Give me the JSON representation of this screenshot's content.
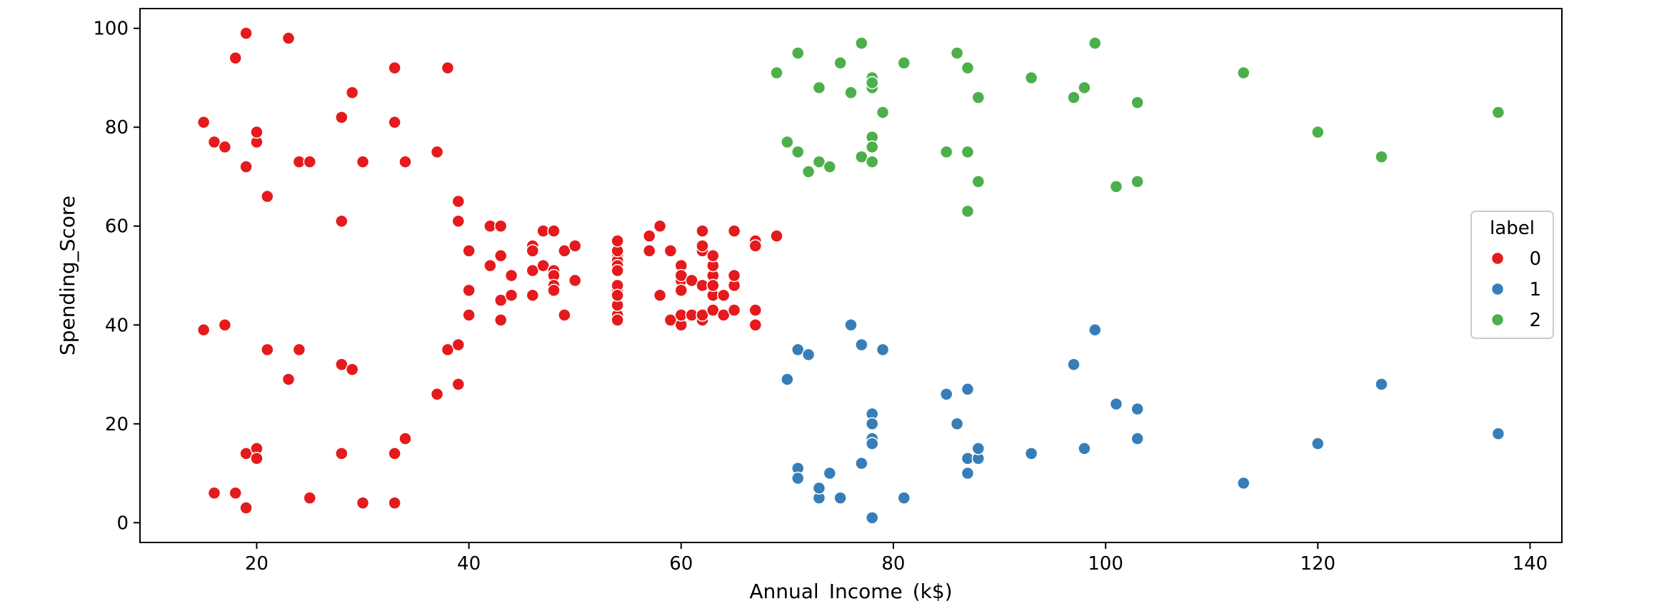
{
  "chart_data": {
    "type": "scatter",
    "xlabel": "Annual_Income_(k$)",
    "ylabel": "Spending_Score",
    "xlim": [
      9,
      143
    ],
    "ylim": [
      -4,
      104
    ],
    "xticks": [
      20,
      40,
      60,
      80,
      100,
      120,
      140
    ],
    "yticks": [
      0,
      20,
      40,
      60,
      80,
      100
    ],
    "grid": false,
    "legend": {
      "title": "label",
      "placement": "center-right"
    },
    "series": [
      {
        "name": "0",
        "color": "#e41a1c",
        "points": [
          [
            15,
            39
          ],
          [
            15,
            81
          ],
          [
            16,
            6
          ],
          [
            16,
            77
          ],
          [
            17,
            40
          ],
          [
            17,
            76
          ],
          [
            18,
            6
          ],
          [
            18,
            94
          ],
          [
            19,
            3
          ],
          [
            19,
            72
          ],
          [
            19,
            14
          ],
          [
            19,
            99
          ],
          [
            20,
            15
          ],
          [
            20,
            77
          ],
          [
            20,
            13
          ],
          [
            20,
            79
          ],
          [
            21,
            35
          ],
          [
            21,
            66
          ],
          [
            23,
            29
          ],
          [
            23,
            98
          ],
          [
            24,
            35
          ],
          [
            24,
            73
          ],
          [
            25,
            5
          ],
          [
            25,
            73
          ],
          [
            28,
            14
          ],
          [
            28,
            82
          ],
          [
            28,
            32
          ],
          [
            28,
            61
          ],
          [
            29,
            31
          ],
          [
            29,
            87
          ],
          [
            30,
            4
          ],
          [
            30,
            73
          ],
          [
            33,
            4
          ],
          [
            33,
            92
          ],
          [
            33,
            14
          ],
          [
            33,
            81
          ],
          [
            34,
            17
          ],
          [
            34,
            73
          ],
          [
            37,
            26
          ],
          [
            37,
            75
          ],
          [
            38,
            35
          ],
          [
            38,
            92
          ],
          [
            39,
            36
          ],
          [
            39,
            61
          ],
          [
            39,
            28
          ],
          [
            39,
            65
          ],
          [
            40,
            55
          ],
          [
            40,
            47
          ],
          [
            40,
            42
          ],
          [
            42,
            52
          ],
          [
            42,
            60
          ],
          [
            43,
            54
          ],
          [
            43,
            60
          ],
          [
            43,
            45
          ],
          [
            43,
            41
          ],
          [
            44,
            50
          ],
          [
            44,
            46
          ],
          [
            46,
            51
          ],
          [
            46,
            46
          ],
          [
            46,
            56
          ],
          [
            46,
            55
          ],
          [
            47,
            52
          ],
          [
            47,
            59
          ],
          [
            48,
            51
          ],
          [
            48,
            59
          ],
          [
            48,
            50
          ],
          [
            48,
            48
          ],
          [
            48,
            47
          ],
          [
            49,
            55
          ],
          [
            49,
            42
          ],
          [
            50,
            49
          ],
          [
            50,
            56
          ],
          [
            54,
            47
          ],
          [
            54,
            54
          ],
          [
            54,
            53
          ],
          [
            54,
            48
          ],
          [
            54,
            52
          ],
          [
            54,
            42
          ],
          [
            54,
            51
          ],
          [
            54,
            55
          ],
          [
            54,
            41
          ],
          [
            54,
            44
          ],
          [
            54,
            57
          ],
          [
            54,
            46
          ],
          [
            57,
            58
          ],
          [
            57,
            55
          ],
          [
            58,
            60
          ],
          [
            58,
            46
          ],
          [
            59,
            55
          ],
          [
            59,
            41
          ],
          [
            60,
            49
          ],
          [
            60,
            40
          ],
          [
            60,
            42
          ],
          [
            60,
            52
          ],
          [
            60,
            47
          ],
          [
            60,
            50
          ],
          [
            61,
            42
          ],
          [
            61,
            49
          ],
          [
            62,
            41
          ],
          [
            62,
            48
          ],
          [
            62,
            59
          ],
          [
            62,
            55
          ],
          [
            62,
            56
          ],
          [
            62,
            42
          ],
          [
            63,
            50
          ],
          [
            63,
            46
          ],
          [
            63,
            43
          ],
          [
            63,
            48
          ],
          [
            63,
            52
          ],
          [
            63,
            54
          ],
          [
            64,
            42
          ],
          [
            64,
            46
          ],
          [
            65,
            48
          ],
          [
            65,
            50
          ],
          [
            65,
            43
          ],
          [
            65,
            59
          ],
          [
            67,
            43
          ],
          [
            67,
            57
          ],
          [
            67,
            56
          ],
          [
            67,
            40
          ],
          [
            69,
            58
          ]
        ]
      },
      {
        "name": "1",
        "color": "#377eb8",
        "points": [
          [
            70,
            29
          ],
          [
            71,
            11
          ],
          [
            71,
            9
          ],
          [
            71,
            35
          ],
          [
            72,
            34
          ],
          [
            73,
            5
          ],
          [
            73,
            7
          ],
          [
            74,
            10
          ],
          [
            75,
            5
          ],
          [
            76,
            40
          ],
          [
            77,
            12
          ],
          [
            77,
            36
          ],
          [
            78,
            22
          ],
          [
            78,
            17
          ],
          [
            78,
            20
          ],
          [
            78,
            16
          ],
          [
            78,
            1
          ],
          [
            79,
            35
          ],
          [
            81,
            5
          ],
          [
            85,
            26
          ],
          [
            86,
            20
          ],
          [
            87,
            27
          ],
          [
            87,
            13
          ],
          [
            87,
            10
          ],
          [
            88,
            13
          ],
          [
            88,
            15
          ],
          [
            93,
            14
          ],
          [
            97,
            32
          ],
          [
            98,
            15
          ],
          [
            99,
            39
          ],
          [
            101,
            24
          ],
          [
            103,
            17
          ],
          [
            103,
            23
          ],
          [
            113,
            8
          ],
          [
            120,
            16
          ],
          [
            126,
            28
          ],
          [
            137,
            18
          ]
        ]
      },
      {
        "name": "2",
        "color": "#4daf4a",
        "points": [
          [
            69,
            91
          ],
          [
            70,
            77
          ],
          [
            71,
            95
          ],
          [
            71,
            75
          ],
          [
            72,
            71
          ],
          [
            73,
            88
          ],
          [
            73,
            73
          ],
          [
            74,
            72
          ],
          [
            75,
            93
          ],
          [
            76,
            87
          ],
          [
            77,
            97
          ],
          [
            77,
            74
          ],
          [
            78,
            90
          ],
          [
            78,
            88
          ],
          [
            78,
            89
          ],
          [
            78,
            78
          ],
          [
            78,
            73
          ],
          [
            78,
            76
          ],
          [
            79,
            83
          ],
          [
            81,
            93
          ],
          [
            85,
            75
          ],
          [
            86,
            95
          ],
          [
            87,
            63
          ],
          [
            87,
            75
          ],
          [
            87,
            92
          ],
          [
            88,
            86
          ],
          [
            88,
            69
          ],
          [
            93,
            90
          ],
          [
            97,
            86
          ],
          [
            98,
            88
          ],
          [
            99,
            97
          ],
          [
            101,
            68
          ],
          [
            103,
            85
          ],
          [
            103,
            69
          ],
          [
            113,
            91
          ],
          [
            120,
            79
          ],
          [
            126,
            74
          ],
          [
            137,
            83
          ]
        ]
      }
    ]
  }
}
